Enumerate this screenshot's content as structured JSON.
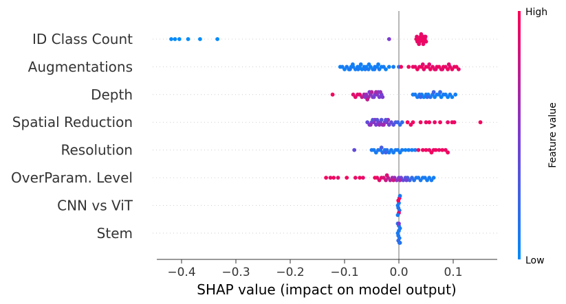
{
  "chart_data": {
    "type": "scatter",
    "subtype": "shap-beeswarm",
    "title": "",
    "xlabel": "SHAP value (impact on model output)",
    "ylabel": "",
    "xlim": [
      -0.445,
      0.18
    ],
    "xticks": [
      -0.4,
      -0.3,
      -0.2,
      -0.1,
      0.0,
      0.1
    ],
    "xtick_labels": [
      "−0.4",
      "−0.3",
      "−0.2",
      "−0.1",
      "0.0",
      "0.1"
    ],
    "colorbar": {
      "label": "Feature value",
      "high_label": "High",
      "low_label": "Low",
      "low_color": "#008bfb",
      "mid_color": "#7c3bd0",
      "high_color": "#ff0052"
    },
    "features": [
      {
        "name": "ID Class Count",
        "points": [
          [
            -0.419,
            0
          ],
          [
            -0.412,
            0
          ],
          [
            -0.404,
            0
          ],
          [
            -0.388,
            0
          ],
          [
            -0.366,
            0
          ],
          [
            -0.334,
            0
          ],
          [
            -0.018,
            0.5
          ],
          [
            0.032,
            0.95
          ],
          [
            0.034,
            0.92
          ],
          [
            0.036,
            0.95
          ],
          [
            0.038,
            0.92
          ],
          [
            0.04,
            0.95
          ],
          [
            0.042,
            0.92
          ],
          [
            0.044,
            0.95
          ],
          [
            0.046,
            0.92
          ],
          [
            0.048,
            0.95
          ],
          [
            0.05,
            0.92
          ],
          [
            0.033,
            0.9
          ],
          [
            0.037,
            0.9
          ],
          [
            0.041,
            0.9
          ],
          [
            0.045,
            0.9
          ],
          [
            0.049,
            0.9
          ]
        ]
      },
      {
        "name": "Augmentations",
        "points": [
          [
            -0.108,
            0.05
          ],
          [
            -0.104,
            0.1
          ],
          [
            -0.1,
            0.05
          ],
          [
            -0.096,
            0.1
          ],
          [
            -0.092,
            0.05
          ],
          [
            -0.088,
            0.05
          ],
          [
            -0.084,
            0.1
          ],
          [
            -0.08,
            0.05
          ],
          [
            -0.076,
            0.1
          ],
          [
            -0.072,
            0.05
          ],
          [
            -0.068,
            0.05
          ],
          [
            -0.064,
            0.1
          ],
          [
            -0.06,
            0.05
          ],
          [
            -0.056,
            0.1
          ],
          [
            -0.052,
            0.05
          ],
          [
            -0.048,
            0.05
          ],
          [
            -0.044,
            0.1
          ],
          [
            -0.04,
            0.05
          ],
          [
            -0.036,
            0.1
          ],
          [
            -0.032,
            0.05
          ],
          [
            -0.028,
            0.1
          ],
          [
            -0.024,
            0.05
          ],
          [
            -0.018,
            0.05
          ],
          [
            -0.01,
            0.1
          ],
          [
            0.0,
            0.15
          ],
          [
            -0.09,
            0.12
          ],
          [
            -0.085,
            0.08
          ],
          [
            -0.075,
            0.12
          ],
          [
            -0.07,
            0.08
          ],
          [
            -0.062,
            0.12
          ],
          [
            -0.055,
            0.08
          ],
          [
            -0.045,
            0.12
          ],
          [
            -0.038,
            0.08
          ],
          [
            0.004,
            0.95
          ],
          [
            0.018,
            0.95
          ],
          [
            0.026,
            0.92
          ],
          [
            0.03,
            0.9
          ],
          [
            0.034,
            0.95
          ],
          [
            0.038,
            0.9
          ],
          [
            0.042,
            0.95
          ],
          [
            0.046,
            0.9
          ],
          [
            0.05,
            0.95
          ],
          [
            0.054,
            0.9
          ],
          [
            0.058,
            0.95
          ],
          [
            0.062,
            0.9
          ],
          [
            0.066,
            0.95
          ],
          [
            0.07,
            0.9
          ],
          [
            0.074,
            0.95
          ],
          [
            0.078,
            0.9
          ],
          [
            0.082,
            0.95
          ],
          [
            0.086,
            0.9
          ],
          [
            0.09,
            0.95
          ],
          [
            0.094,
            0.9
          ],
          [
            0.098,
            0.95
          ],
          [
            0.102,
            0.9
          ],
          [
            0.106,
            0.95
          ],
          [
            0.11,
            0.92
          ],
          [
            0.044,
            0.88
          ],
          [
            0.056,
            0.88
          ],
          [
            0.068,
            0.88
          ],
          [
            0.08,
            0.88
          ],
          [
            0.092,
            0.88
          ]
        ]
      },
      {
        "name": "Depth",
        "points": [
          [
            -0.122,
            0.95
          ],
          [
            -0.084,
            0.88
          ],
          [
            -0.08,
            0.9
          ],
          [
            -0.076,
            0.88
          ],
          [
            -0.072,
            0.9
          ],
          [
            -0.068,
            0.75
          ],
          [
            -0.064,
            0.7
          ],
          [
            -0.06,
            0.6
          ],
          [
            -0.056,
            0.65
          ],
          [
            -0.052,
            0.55
          ],
          [
            -0.048,
            0.6
          ],
          [
            -0.044,
            0.5
          ],
          [
            -0.04,
            0.55
          ],
          [
            -0.036,
            0.5
          ],
          [
            -0.032,
            0.45
          ],
          [
            -0.062,
            0.55
          ],
          [
            -0.054,
            0.5
          ],
          [
            -0.046,
            0.45
          ],
          [
            -0.038,
            0.45
          ],
          [
            -0.03,
            0.5
          ],
          [
            -0.058,
            0.75
          ],
          [
            -0.05,
            0.7
          ],
          [
            -0.042,
            0.65
          ],
          [
            -0.034,
            0.6
          ],
          [
            0.026,
            0.08
          ],
          [
            0.03,
            0.1
          ],
          [
            0.034,
            0.08
          ],
          [
            0.038,
            0.15
          ],
          [
            0.042,
            0.1
          ],
          [
            0.046,
            0.05
          ],
          [
            0.05,
            0.1
          ],
          [
            0.054,
            0.08
          ],
          [
            0.058,
            0.15
          ],
          [
            0.062,
            0.1
          ],
          [
            0.066,
            0.05
          ],
          [
            0.07,
            0.1
          ],
          [
            0.074,
            0.08
          ],
          [
            0.078,
            0.05
          ],
          [
            0.082,
            0.1
          ],
          [
            0.086,
            0.08
          ],
          [
            0.09,
            0.05
          ],
          [
            0.094,
            0.1
          ],
          [
            0.098,
            0.05
          ],
          [
            0.104,
            0.08
          ],
          [
            0.04,
            0.25
          ],
          [
            0.052,
            0.2
          ],
          [
            0.064,
            0.25
          ],
          [
            0.076,
            0.2
          ]
        ]
      },
      {
        "name": "Spatial Reduction",
        "points": [
          [
            -0.058,
            0.4
          ],
          [
            -0.054,
            0.5
          ],
          [
            -0.05,
            0.45
          ],
          [
            -0.046,
            0.55
          ],
          [
            -0.042,
            0.5
          ],
          [
            -0.038,
            0.45
          ],
          [
            -0.034,
            0.5
          ],
          [
            -0.03,
            0.55
          ],
          [
            -0.026,
            0.45
          ],
          [
            -0.022,
            0.5
          ],
          [
            -0.018,
            0.45
          ],
          [
            -0.014,
            0.4
          ],
          [
            -0.01,
            0.35
          ],
          [
            -0.006,
            0.3
          ],
          [
            -0.002,
            0.25
          ],
          [
            0.002,
            0.2
          ],
          [
            0.006,
            0.2
          ],
          [
            -0.052,
            0.6
          ],
          [
            -0.044,
            0.65
          ],
          [
            -0.036,
            0.6
          ],
          [
            -0.028,
            0.65
          ],
          [
            -0.02,
            0.6
          ],
          [
            -0.048,
            0.35
          ],
          [
            -0.04,
            0.38
          ],
          [
            -0.032,
            0.35
          ],
          [
            -0.024,
            0.38
          ],
          [
            0.016,
            0.95
          ],
          [
            0.022,
            0.92
          ],
          [
            0.026,
            0.95
          ],
          [
            0.04,
            0.95
          ],
          [
            0.05,
            0.92
          ],
          [
            0.056,
            0.95
          ],
          [
            0.066,
            0.92
          ],
          [
            0.076,
            0.95
          ],
          [
            0.09,
            0.9
          ],
          [
            0.098,
            0.95
          ],
          [
            0.102,
            0.92
          ],
          [
            0.15,
            0.95
          ]
        ]
      },
      {
        "name": "Resolution",
        "points": [
          [
            -0.082,
            0.4
          ],
          [
            -0.05,
            0.1
          ],
          [
            -0.046,
            0.1
          ],
          [
            -0.042,
            0.1
          ],
          [
            -0.038,
            0.15
          ],
          [
            -0.034,
            0.1
          ],
          [
            -0.03,
            0.15
          ],
          [
            -0.026,
            0.1
          ],
          [
            -0.022,
            0.15
          ],
          [
            -0.018,
            0.1
          ],
          [
            -0.014,
            0.1
          ],
          [
            -0.01,
            0.1
          ],
          [
            -0.006,
            0.1
          ],
          [
            -0.002,
            0.1
          ],
          [
            0.002,
            0.08
          ],
          [
            0.006,
            0.1
          ],
          [
            0.012,
            0.05
          ],
          [
            0.018,
            0.1
          ],
          [
            0.024,
            0.08
          ],
          [
            0.03,
            0.1
          ],
          [
            0.036,
            0.95
          ],
          [
            0.044,
            0.92
          ],
          [
            0.05,
            0.95
          ],
          [
            0.056,
            0.9
          ],
          [
            0.06,
            0.95
          ],
          [
            0.064,
            0.92
          ],
          [
            0.068,
            0.95
          ],
          [
            0.074,
            0.9
          ],
          [
            0.08,
            0.95
          ],
          [
            0.086,
            0.92
          ],
          [
            0.09,
            0.95
          ],
          [
            -0.032,
            0.3
          ],
          [
            -0.024,
            0.25
          ]
        ]
      },
      {
        "name": "OverParam. Level",
        "points": [
          [
            -0.134,
            0.95
          ],
          [
            -0.126,
            0.92
          ],
          [
            -0.12,
            0.95
          ],
          [
            -0.112,
            0.9
          ],
          [
            -0.096,
            0.95
          ],
          [
            -0.08,
            0.92
          ],
          [
            -0.072,
            0.95
          ],
          [
            -0.066,
            0.9
          ],
          [
            -0.044,
            0.95
          ],
          [
            -0.04,
            0.92
          ],
          [
            -0.036,
            0.88
          ],
          [
            -0.032,
            0.9
          ],
          [
            -0.028,
            0.85
          ],
          [
            -0.024,
            0.8
          ],
          [
            -0.02,
            0.75
          ],
          [
            -0.016,
            0.7
          ],
          [
            -0.012,
            0.65
          ],
          [
            -0.008,
            0.6
          ],
          [
            -0.004,
            0.55
          ],
          [
            0.0,
            0.5
          ],
          [
            0.004,
            0.45
          ],
          [
            0.008,
            0.4
          ],
          [
            0.012,
            0.35
          ],
          [
            0.016,
            0.3
          ],
          [
            0.02,
            0.25
          ],
          [
            0.024,
            0.2
          ],
          [
            0.028,
            0.15
          ],
          [
            0.032,
            0.12
          ],
          [
            0.036,
            0.1
          ],
          [
            0.04,
            0.1
          ],
          [
            0.044,
            0.1
          ],
          [
            0.048,
            0.1
          ],
          [
            0.052,
            0.08
          ],
          [
            0.056,
            0.1
          ],
          [
            0.06,
            0.1
          ],
          [
            0.064,
            0.08
          ],
          [
            -0.022,
            0.85
          ],
          [
            -0.01,
            0.8
          ],
          [
            0.002,
            0.65
          ],
          [
            0.014,
            0.45
          ]
        ]
      },
      {
        "name": "CNN vs ViT",
        "points": [
          [
            -0.002,
            0.1
          ],
          [
            -0.001,
            0.15
          ],
          [
            0.0,
            0.1
          ],
          [
            0.001,
            0.15
          ],
          [
            -0.001,
            0.95
          ],
          [
            0.0,
            0.9
          ],
          [
            0.001,
            0.95
          ],
          [
            -0.002,
            0.1
          ],
          [
            0.002,
            0.12
          ]
        ]
      },
      {
        "name": "Stem",
        "points": [
          [
            -0.002,
            0.1
          ],
          [
            -0.001,
            0.12
          ],
          [
            0.0,
            0.1
          ],
          [
            0.001,
            0.12
          ],
          [
            0.002,
            0.1
          ],
          [
            -0.001,
            0.2
          ],
          [
            0.0,
            0.15
          ],
          [
            0.001,
            0.2
          ],
          [
            -0.002,
            0.15
          ],
          [
            0.002,
            0.15
          ],
          [
            0.0,
            0.5
          ]
        ]
      }
    ]
  }
}
